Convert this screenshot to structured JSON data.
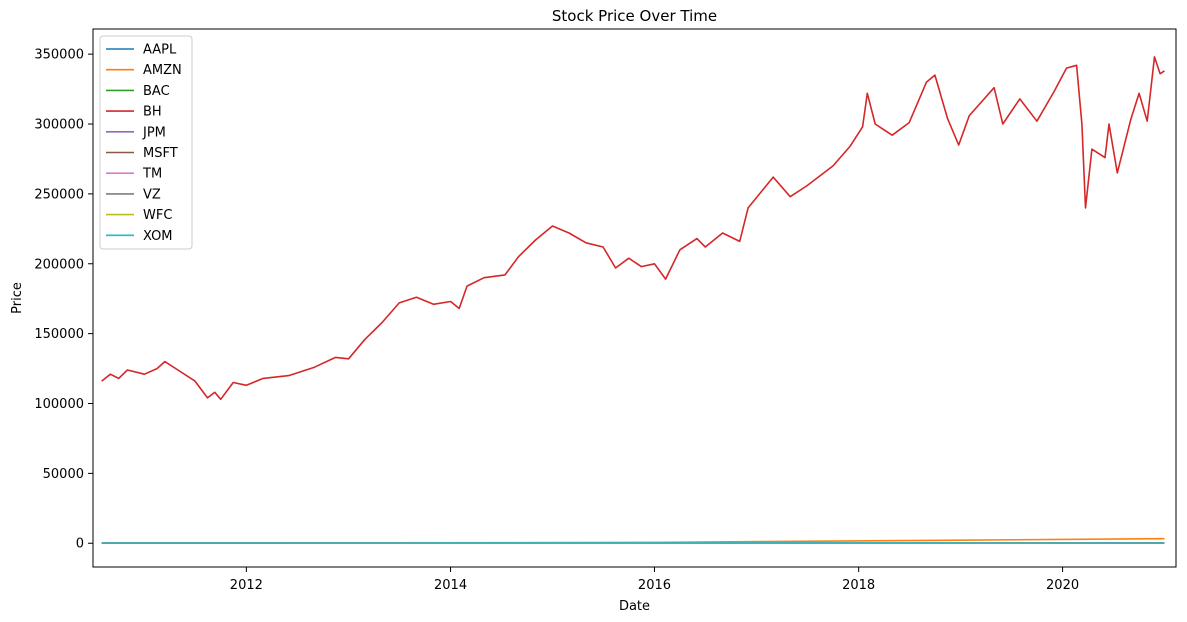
{
  "chart_data": {
    "type": "line",
    "title": "Stock Price Over Time",
    "xlabel": "Date",
    "ylabel": "Price",
    "x_range": [
      "2010-07-01",
      "2021-02-10"
    ],
    "ylim": [
      -17000,
      368000
    ],
    "x_ticks": [
      "2012",
      "2014",
      "2016",
      "2018",
      "2020"
    ],
    "y_ticks": [
      "0",
      "50000",
      "100000",
      "150000",
      "200000",
      "250000",
      "300000",
      "350000"
    ],
    "grid": false,
    "legend_position": "top-left",
    "series": [
      {
        "name": "AAPL",
        "color": "#1f77b4",
        "points": [
          [
            "2010-08-01",
            8
          ],
          [
            "2012-09-01",
            23
          ],
          [
            "2015-02-01",
            30
          ],
          [
            "2018-10-01",
            55
          ],
          [
            "2020-12-31",
            130
          ]
        ]
      },
      {
        "name": "AMZN",
        "color": "#ff7f0e",
        "points": [
          [
            "2010-08-01",
            120
          ],
          [
            "2013-01-01",
            260
          ],
          [
            "2016-01-01",
            600
          ],
          [
            "2018-09-01",
            2000
          ],
          [
            "2020-12-31",
            3250
          ]
        ]
      },
      {
        "name": "BAC",
        "color": "#2ca02c",
        "points": [
          [
            "2010-08-01",
            14
          ],
          [
            "2011-12-01",
            5
          ],
          [
            "2015-01-01",
            17
          ],
          [
            "2018-02-01",
            32
          ],
          [
            "2020-12-31",
            30
          ]
        ]
      },
      {
        "name": "BH",
        "color": "#d62728",
        "points": [
          [
            "2010-08-01",
            116000
          ],
          [
            "2010-09-01",
            121000
          ],
          [
            "2010-10-01",
            118000
          ],
          [
            "2010-11-01",
            124000
          ],
          [
            "2011-01-01",
            121000
          ],
          [
            "2011-02-15",
            125000
          ],
          [
            "2011-03-15",
            130000
          ],
          [
            "2011-05-01",
            124000
          ],
          [
            "2011-07-01",
            116000
          ],
          [
            "2011-08-15",
            104000
          ],
          [
            "2011-09-10",
            108000
          ],
          [
            "2011-10-01",
            103000
          ],
          [
            "2011-11-15",
            115000
          ],
          [
            "2012-01-01",
            113000
          ],
          [
            "2012-03-01",
            118000
          ],
          [
            "2012-06-01",
            120000
          ],
          [
            "2012-09-01",
            126000
          ],
          [
            "2012-11-15",
            133000
          ],
          [
            "2013-01-01",
            132000
          ],
          [
            "2013-03-01",
            146000
          ],
          [
            "2013-05-01",
            158000
          ],
          [
            "2013-07-01",
            172000
          ],
          [
            "2013-09-01",
            176000
          ],
          [
            "2013-11-01",
            171000
          ],
          [
            "2014-01-01",
            173000
          ],
          [
            "2014-02-01",
            168000
          ],
          [
            "2014-03-01",
            184000
          ],
          [
            "2014-05-01",
            190000
          ],
          [
            "2014-07-15",
            192000
          ],
          [
            "2014-09-01",
            205000
          ],
          [
            "2014-11-01",
            217000
          ],
          [
            "2015-01-01",
            227000
          ],
          [
            "2015-03-01",
            222000
          ],
          [
            "2015-05-01",
            215000
          ],
          [
            "2015-07-01",
            212000
          ],
          [
            "2015-08-15",
            197000
          ],
          [
            "2015-10-01",
            204000
          ],
          [
            "2015-11-15",
            198000
          ],
          [
            "2016-01-01",
            200000
          ],
          [
            "2016-02-10",
            189000
          ],
          [
            "2016-04-01",
            210000
          ],
          [
            "2016-06-01",
            218000
          ],
          [
            "2016-07-01",
            212000
          ],
          [
            "2016-09-01",
            222000
          ],
          [
            "2016-11-01",
            216000
          ],
          [
            "2016-12-01",
            240000
          ],
          [
            "2017-03-01",
            262000
          ],
          [
            "2017-05-01",
            248000
          ],
          [
            "2017-07-01",
            256000
          ],
          [
            "2017-10-01",
            270000
          ],
          [
            "2017-12-01",
            284000
          ],
          [
            "2018-01-15",
            298000
          ],
          [
            "2018-02-01",
            322000
          ],
          [
            "2018-03-01",
            300000
          ],
          [
            "2018-05-01",
            292000
          ],
          [
            "2018-07-01",
            301000
          ],
          [
            "2018-09-01",
            330000
          ],
          [
            "2018-10-01",
            335000
          ],
          [
            "2018-11-15",
            304000
          ],
          [
            "2018-12-25",
            285000
          ],
          [
            "2019-02-01",
            306000
          ],
          [
            "2019-05-01",
            326000
          ],
          [
            "2019-06-01",
            300000
          ],
          [
            "2019-08-01",
            318000
          ],
          [
            "2019-10-01",
            302000
          ],
          [
            "2019-12-01",
            323000
          ],
          [
            "2020-01-15",
            340000
          ],
          [
            "2020-02-20",
            342000
          ],
          [
            "2020-03-10",
            300000
          ],
          [
            "2020-03-23",
            240000
          ],
          [
            "2020-04-15",
            282000
          ],
          [
            "2020-06-01",
            276000
          ],
          [
            "2020-06-15",
            300000
          ],
          [
            "2020-07-15",
            265000
          ],
          [
            "2020-09-01",
            303000
          ],
          [
            "2020-10-01",
            322000
          ],
          [
            "2020-10-30",
            302000
          ],
          [
            "2020-11-25",
            348000
          ],
          [
            "2020-12-15",
            336000
          ],
          [
            "2020-12-31",
            338000
          ]
        ]
      },
      {
        "name": "JPM",
        "color": "#9467bd",
        "points": [
          [
            "2010-08-01",
            40
          ],
          [
            "2011-10-01",
            30
          ],
          [
            "2015-01-01",
            62
          ],
          [
            "2018-02-01",
            115
          ],
          [
            "2020-12-31",
            127
          ]
        ]
      },
      {
        "name": "MSFT",
        "color": "#8c564b",
        "points": [
          [
            "2010-08-01",
            25
          ],
          [
            "2013-01-01",
            27
          ],
          [
            "2016-01-01",
            55
          ],
          [
            "2018-10-01",
            110
          ],
          [
            "2020-12-31",
            222
          ]
        ]
      },
      {
        "name": "TM",
        "color": "#e377c2",
        "points": [
          [
            "2010-08-01",
            75
          ],
          [
            "2013-01-01",
            95
          ],
          [
            "2016-01-01",
            120
          ],
          [
            "2018-10-01",
            120
          ],
          [
            "2020-12-31",
            155
          ]
        ]
      },
      {
        "name": "VZ",
        "color": "#7f7f7f",
        "points": [
          [
            "2010-08-01",
            30
          ],
          [
            "2013-01-01",
            43
          ],
          [
            "2016-01-01",
            46
          ],
          [
            "2018-10-01",
            56
          ],
          [
            "2020-12-31",
            59
          ]
        ]
      },
      {
        "name": "WFC",
        "color": "#bcbd22",
        "points": [
          [
            "2010-08-01",
            26
          ],
          [
            "2013-01-01",
            34
          ],
          [
            "2016-01-01",
            54
          ],
          [
            "2018-02-01",
            62
          ],
          [
            "2020-12-31",
            30
          ]
        ]
      },
      {
        "name": "XOM",
        "color": "#17becf",
        "points": [
          [
            "2010-08-01",
            60
          ],
          [
            "2014-06-01",
            104
          ],
          [
            "2016-01-01",
            78
          ],
          [
            "2018-10-01",
            80
          ],
          [
            "2020-12-31",
            41
          ]
        ]
      }
    ]
  }
}
